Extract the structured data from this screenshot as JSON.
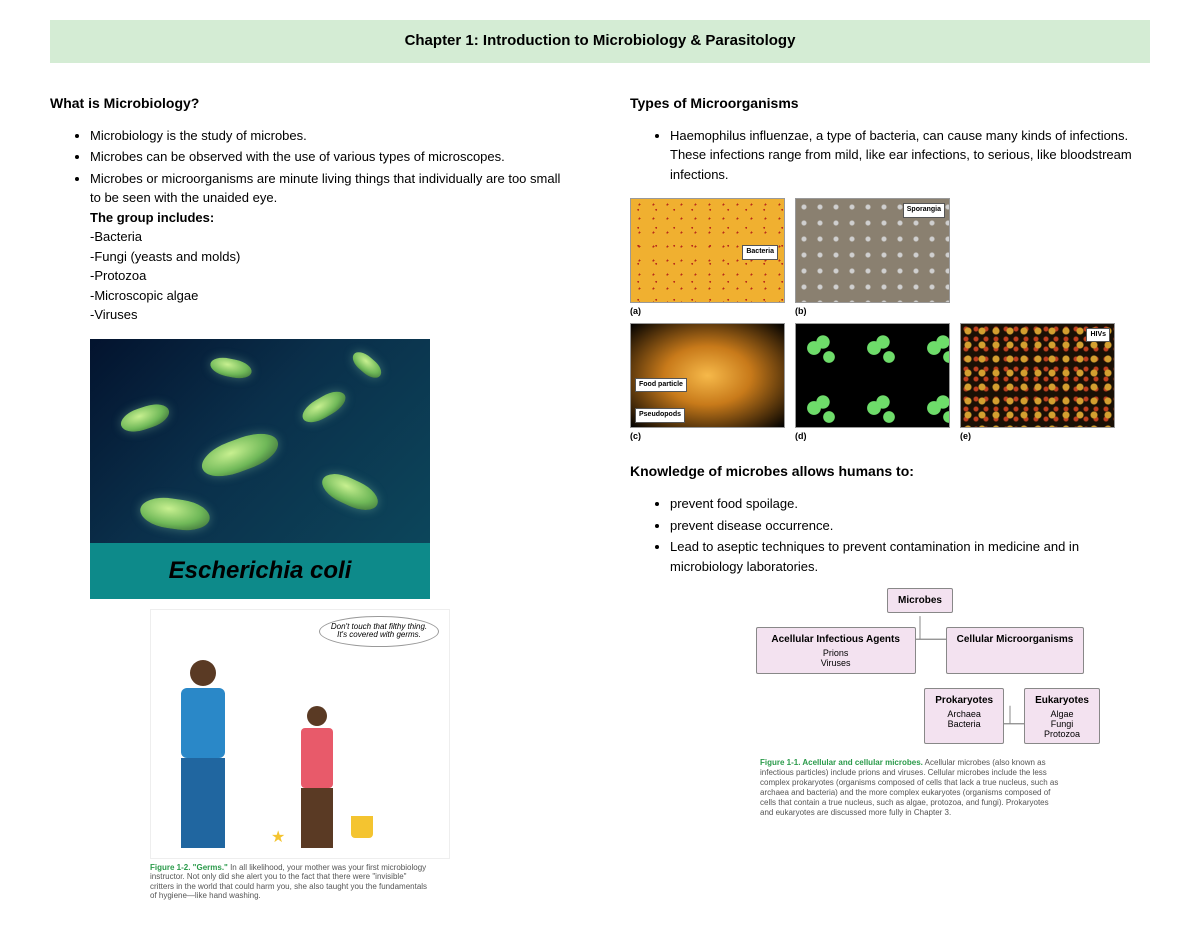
{
  "title_bar": "Chapter 1: Introduction to Microbiology & Parasitology",
  "colors": {
    "title_bar_bg": "#d4ecd4",
    "ecoli_bg_gradient": [
      "#03132e",
      "#0a2f4a",
      "#0d4a5e"
    ],
    "ecoli_caption_bg": "#0d8a8a",
    "figure_label_color": "#2a9a4a",
    "tree_node_bg": "#f3e2f0"
  },
  "left": {
    "heading1": "What is Microbiology?",
    "bullets1": [
      "Microbiology is the study of microbes.",
      "Microbes can be observed with the use of various types of microscopes.",
      "Microbes or microorganisms are minute living things that individually are too small to be seen with the unaided eye."
    ],
    "group_label": "The group includes:",
    "group_items": [
      "-Bacteria",
      "-Fungi (yeasts and molds)",
      "-Protozoa",
      "-Microscopic algae",
      "-Viruses"
    ],
    "ecoli_caption": "Escherichia coli",
    "germs_bubble": "Don't touch that filthy thing. It's covered with germs.",
    "germs_caption_label": "Figure 1-2. \"Germs.\"",
    "germs_caption_text": " In all likelihood, your mother was your first microbiology instructor. Not only did she alert you to the fact that there were \"invisible\" critters in the world that could harm you, she also taught you the fundamentals of hygiene—like hand washing."
  },
  "right": {
    "heading1": "Types of Microorganisms",
    "bullets1": [
      "Haemophilus influenzae, a type of bacteria, can cause many kinds of infections. These infections range from mild, like ear infections, to serious, like bloodstream infections."
    ],
    "grid": [
      {
        "sub": "(a)",
        "tag_text": "Bacteria",
        "tag_pos": "right:6px; top:46px;",
        "tex_class": "tex-a"
      },
      {
        "sub": "(b)",
        "tag_text": "Sporangia",
        "tag_pos": "right:4px; top:4px;",
        "tex_class": "tex-b"
      },
      {
        "sub": "(c)",
        "tag_text": "Food particle",
        "tag_pos": "left:4px; top:54px;",
        "tag2_text": "Pseudopods",
        "tag2_pos": "left:4px; bottom:4px;",
        "tex_class": "tex-c"
      },
      {
        "sub": "(d)",
        "tag_text": "",
        "tag_pos": "",
        "tex_class": "tex-d"
      },
      {
        "sub": "(e)",
        "tag_text": "HIVs",
        "tag_pos": "right:4px; top:4px;",
        "tex_class": "tex-e"
      }
    ],
    "heading2": "Knowledge of microbes allows humans to:",
    "bullets2": [
      "prevent food spoilage.",
      "prevent disease occurrence.",
      "Lead to aseptic techniques to prevent contamination in medicine and in microbiology laboratories."
    ],
    "tree": {
      "root": "Microbes",
      "level2": [
        {
          "title": "Acellular Infectious Agents",
          "subtext": "Prions\nViruses"
        },
        {
          "title": "Cellular Microorganisms",
          "subtext": ""
        }
      ],
      "level3": [
        {
          "title": "Prokaryotes",
          "subtext": "Archaea\nBacteria"
        },
        {
          "title": "Eukaryotes",
          "subtext": "Algae\nFungi\nProtozoa"
        }
      ],
      "caption_label": "Figure 1-1. Acellular and cellular microbes.",
      "caption_text": " Acellular microbes (also known as infectious particles) include prions and viruses. Cellular microbes include the less complex prokaryotes (organisms composed of cells that lack a true nucleus, such as archaea and bacteria) and the more complex eukaryotes (organisms composed of cells that contain a true nucleus, such as algae, protozoa, and fungi). Prokaryotes and eukaryotes are discussed more fully in Chapter 3."
    }
  }
}
